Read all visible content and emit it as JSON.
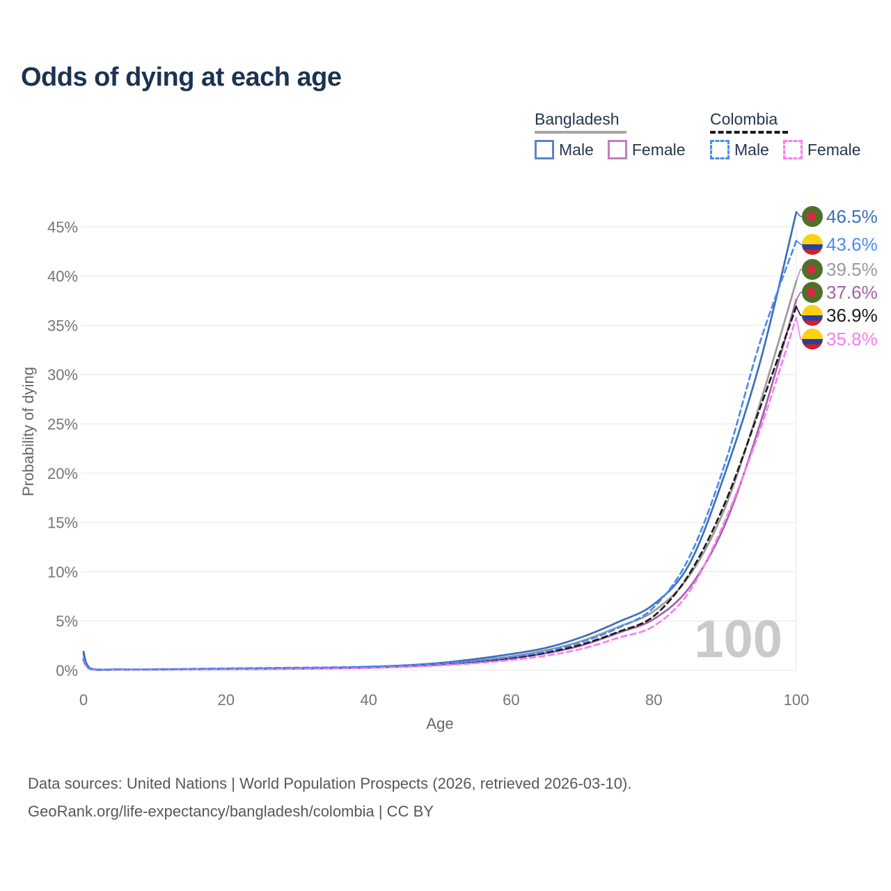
{
  "title": "Odds of dying at each age",
  "legend": {
    "groups": [
      {
        "name": "Bangladesh",
        "line_style": "solid",
        "underline_color": "#a6a6a6",
        "underline_width": 132,
        "items": [
          {
            "label": "Male",
            "color": "#5b84c6"
          },
          {
            "label": "Female",
            "color": "#c07fc0"
          }
        ]
      },
      {
        "name": "Colombia",
        "line_style": "dashed",
        "underline_color": "#1b1b1b",
        "underline_width": 112,
        "items": [
          {
            "label": "Male",
            "color": "#4a8bf4"
          },
          {
            "label": "Female",
            "color": "#f87df0"
          }
        ]
      }
    ]
  },
  "chart_data": {
    "type": "line",
    "title": "Odds of dying at each age",
    "xlabel": "Age",
    "ylabel": "Probability of dying",
    "xlim": [
      0,
      100
    ],
    "ylim": [
      0,
      47
    ],
    "grid": "horizontal",
    "watermark": "100",
    "x_ticks": [
      {
        "v": 0,
        "label": "0"
      },
      {
        "v": 20,
        "label": "20"
      },
      {
        "v": 40,
        "label": "40"
      },
      {
        "v": 60,
        "label": "60"
      },
      {
        "v": 80,
        "label": "80"
      },
      {
        "v": 100,
        "label": "100"
      }
    ],
    "y_ticks": [
      {
        "v": 0,
        "label": "0%"
      },
      {
        "v": 5,
        "label": "5%"
      },
      {
        "v": 10,
        "label": "10%"
      },
      {
        "v": 15,
        "label": "15%"
      },
      {
        "v": 20,
        "label": "20%"
      },
      {
        "v": 25,
        "label": "25%"
      },
      {
        "v": 30,
        "label": "30%"
      },
      {
        "v": 35,
        "label": "35%"
      },
      {
        "v": 40,
        "label": "40%"
      },
      {
        "v": 45,
        "label": "45%"
      }
    ],
    "ages": [
      0,
      1,
      5,
      10,
      15,
      20,
      25,
      30,
      35,
      40,
      45,
      50,
      55,
      60,
      65,
      70,
      75,
      80,
      85,
      90,
      95,
      100
    ],
    "series": [
      {
        "name": "Bangladesh Male",
        "country": "Bangladesh",
        "sex": "Male",
        "color": "#3b70ba",
        "dash": "solid",
        "flag": "bangladesh",
        "end_label": "46.5%",
        "end_value": 46.5,
        "values": [
          1.9,
          0.2,
          0.1,
          0.1,
          0.13,
          0.16,
          0.18,
          0.21,
          0.26,
          0.35,
          0.5,
          0.75,
          1.15,
          1.65,
          2.3,
          3.4,
          4.9,
          6.7,
          10.8,
          20.0,
          31.5,
          46.5
        ]
      },
      {
        "name": "Colombia Male",
        "country": "Colombia",
        "sex": "Male",
        "color": "#4a8bf4",
        "dash": "dashed",
        "flag": "colombia",
        "end_label": "43.6%",
        "end_value": 43.6,
        "values": [
          1.2,
          0.15,
          0.08,
          0.1,
          0.15,
          0.2,
          0.24,
          0.27,
          0.31,
          0.38,
          0.5,
          0.68,
          0.95,
          1.35,
          1.95,
          2.9,
          4.3,
          6.4,
          11.5,
          21.0,
          33.5,
          43.6
        ]
      },
      {
        "name": "Bangladesh Both sexes",
        "country": "Bangladesh",
        "sex": "Both",
        "color": "#9b9b9b",
        "dash": "solid",
        "flag": "bangladesh",
        "end_label": "39.5%",
        "end_value": 39.5,
        "values": [
          1.75,
          0.18,
          0.09,
          0.09,
          0.12,
          0.14,
          0.16,
          0.19,
          0.23,
          0.31,
          0.44,
          0.65,
          0.98,
          1.42,
          2.05,
          3.0,
          4.4,
          6.0,
          9.6,
          16.5,
          27.3,
          39.5
        ]
      },
      {
        "name": "Bangladesh Female",
        "country": "Bangladesh",
        "sex": "Female",
        "color": "#a160a8",
        "dash": "solid",
        "flag": "bangladesh",
        "end_label": "37.6%",
        "end_value": 37.6,
        "values": [
          1.6,
          0.16,
          0.08,
          0.08,
          0.1,
          0.12,
          0.14,
          0.17,
          0.2,
          0.27,
          0.38,
          0.56,
          0.82,
          1.2,
          1.75,
          2.55,
          3.8,
          5.2,
          8.4,
          14.8,
          25.2,
          37.6
        ]
      },
      {
        "name": "Colombia Both sexes",
        "country": "Colombia",
        "sex": "Both",
        "color": "#1b1b1b",
        "dash": "dashed",
        "flag": "colombia",
        "end_label": "36.9%",
        "end_value": 36.9,
        "values": [
          1.05,
          0.13,
          0.07,
          0.08,
          0.11,
          0.15,
          0.18,
          0.21,
          0.25,
          0.31,
          0.42,
          0.6,
          0.86,
          1.25,
          1.8,
          2.65,
          3.9,
          5.5,
          9.8,
          17.0,
          26.8,
          36.9
        ]
      },
      {
        "name": "Colombia Female",
        "country": "Colombia",
        "sex": "Female",
        "color": "#f87df0",
        "dash": "dashed",
        "flag": "colombia",
        "end_label": "35.8%",
        "end_value": 35.8,
        "values": [
          0.95,
          0.12,
          0.06,
          0.07,
          0.09,
          0.11,
          0.13,
          0.16,
          0.19,
          0.25,
          0.35,
          0.5,
          0.72,
          1.05,
          1.5,
          2.2,
          3.3,
          4.5,
          8.0,
          15.2,
          24.6,
          35.8
        ]
      }
    ]
  },
  "flags": {
    "bangladesh": {
      "green": "#4d7129",
      "red": "#d62a45"
    },
    "colombia": {
      "yellow": "#fcd116",
      "blue": "#2a3f9e",
      "red": "#d21f2e"
    }
  },
  "footer": {
    "line1": "Data sources: United Nations | World Population Prospects (2026, retrieved 2026-03-10).",
    "line2": "GeoRank.org/life-expectancy/bangladesh/colombia | CC BY"
  }
}
